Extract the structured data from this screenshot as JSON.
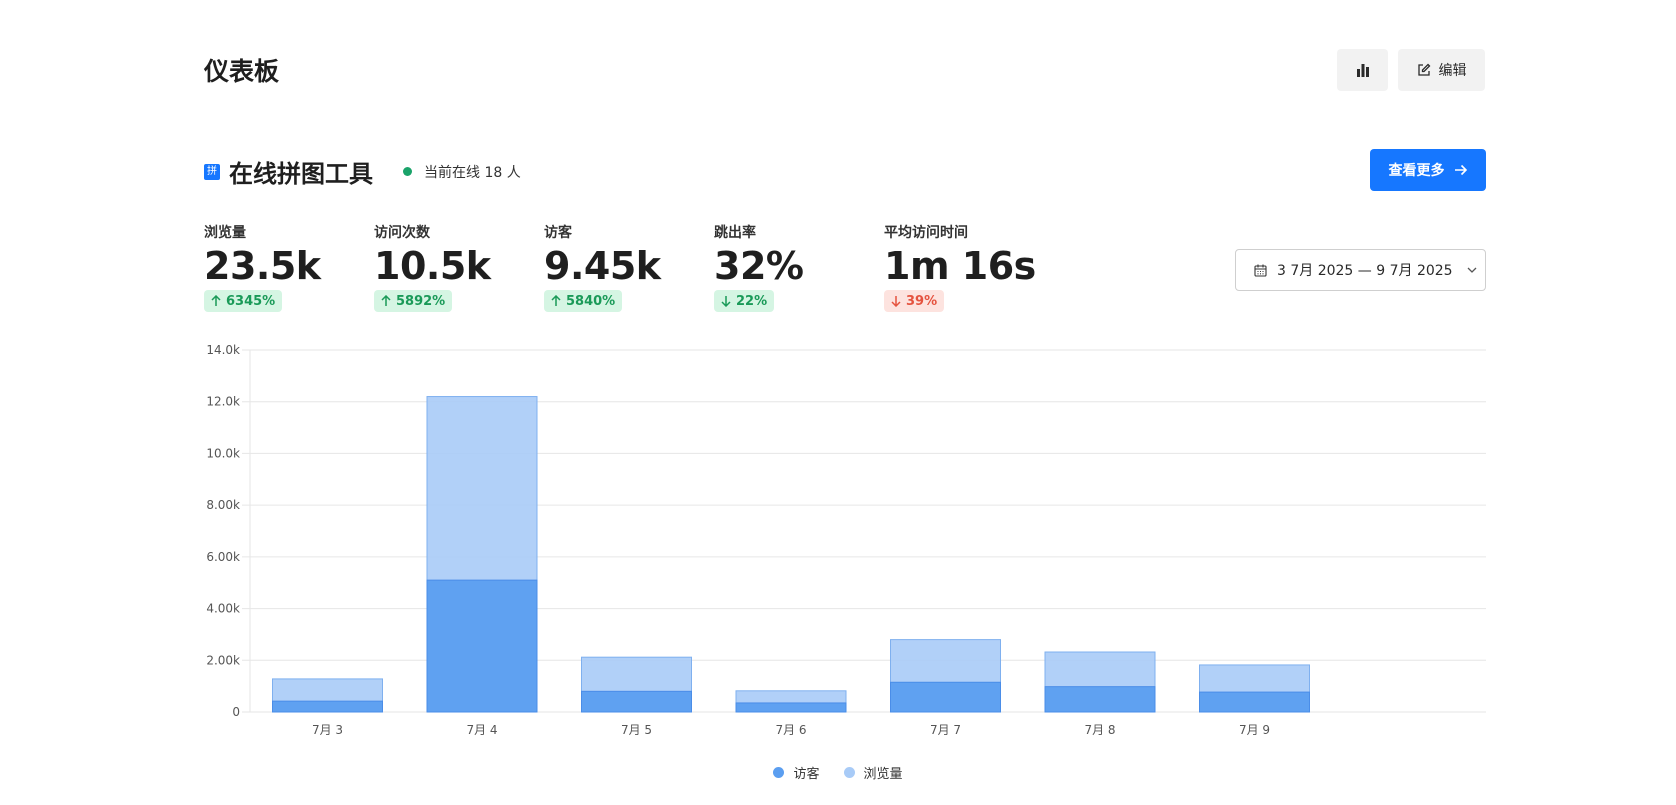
{
  "header": {
    "title": "仪表板",
    "edit_label": "编辑"
  },
  "site": {
    "name": "在线拼图工具",
    "favicon_char": "拼",
    "online_text": "当前在线 18 人",
    "view_more_label": "查看更多"
  },
  "metrics": [
    {
      "label": "浏览量",
      "value": "23.5k",
      "change": "6345%",
      "direction": "up"
    },
    {
      "label": "访问次数",
      "value": "10.5k",
      "change": "5892%",
      "direction": "up"
    },
    {
      "label": "访客",
      "value": "9.45k",
      "change": "5840%",
      "direction": "up"
    },
    {
      "label": "跳出率",
      "value": "32%",
      "change": "22%",
      "direction": "down"
    },
    {
      "label": "平均访问时间",
      "value": "1m 16s",
      "change": "39%",
      "direction": "down"
    }
  ],
  "date_range": "3 7月 2025 — 9 7月 2025",
  "colors": {
    "accent": "#1677ff",
    "visitors": "#5b9ef0",
    "pageviews": "#a8cbf7",
    "positive": "#1a9a58",
    "negative": "#e5533f"
  },
  "icons": [
    "bar-chart-icon",
    "edit-icon",
    "arrow-right-icon",
    "calendar-icon",
    "chevron-down-icon",
    "arrow-up-icon",
    "arrow-down-icon"
  ],
  "chart_data": {
    "type": "bar",
    "stacked": false,
    "categories": [
      "7月 3",
      "7月 4",
      "7月 5",
      "7月 6",
      "7月 7",
      "7月 8",
      "7月 9"
    ],
    "series": [
      {
        "name": "访客",
        "values": [
          420,
          5100,
          800,
          350,
          1150,
          980,
          770
        ]
      },
      {
        "name": "浏览量",
        "values": [
          1280,
          12200,
          2120,
          820,
          2800,
          2320,
          1820
        ]
      }
    ],
    "y_ticks": [
      "0",
      "2.00k",
      "4.00k",
      "6.00k",
      "8.00k",
      "10.0k",
      "12.0k",
      "14.0k"
    ],
    "ylim": [
      0,
      14000
    ],
    "grid": true,
    "legend": "bottom-center"
  }
}
